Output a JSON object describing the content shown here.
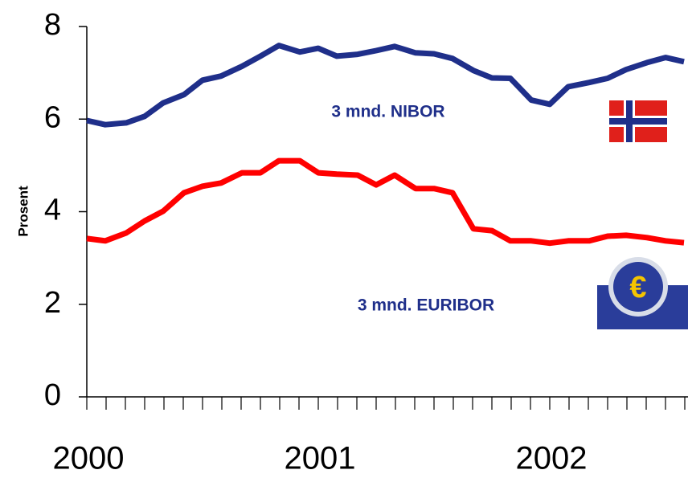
{
  "chart_data": {
    "type": "line",
    "y_label": "Prosent",
    "annotations": [
      "3 mnd. NIBOR",
      "3 mnd. EURIBOR"
    ],
    "x": [
      2000,
      2000.08,
      2000.17,
      2000.25,
      2000.33,
      2000.42,
      2000.5,
      2000.58,
      2000.67,
      2000.75,
      2000.83,
      2000.92,
      2001,
      2001.08,
      2001.17,
      2001.25,
      2001.33,
      2001.42,
      2001.5,
      2001.58,
      2001.67,
      2001.75,
      2001.83,
      2001.92,
      2002,
      2002.08,
      2002.17,
      2002.25,
      2002.33,
      2002.42,
      2002.5,
      2002.58
    ],
    "series": [
      {
        "name": "3 mnd. NIBOR",
        "color": "#1f2f8a",
        "values": [
          5.97,
          5.88,
          5.92,
          6.06,
          6.35,
          6.53,
          6.84,
          6.93,
          7.14,
          7.36,
          7.59,
          7.45,
          7.53,
          7.36,
          7.4,
          7.48,
          7.57,
          7.43,
          7.41,
          7.31,
          7.05,
          6.89,
          6.88,
          6.41,
          6.32,
          6.7,
          6.79,
          6.88,
          7.07,
          7.22,
          7.33,
          7.24
        ]
      },
      {
        "name": "3 mnd. EURIBOR",
        "color": "#ff0000",
        "values": [
          3.42,
          3.37,
          3.54,
          3.8,
          4.01,
          4.41,
          4.55,
          4.62,
          4.84,
          4.84,
          5.1,
          5.1,
          4.84,
          4.81,
          4.79,
          4.58,
          4.79,
          4.5,
          4.5,
          4.41,
          3.63,
          3.59,
          3.37,
          3.37,
          3.32,
          3.37,
          3.37,
          3.47,
          3.49,
          3.44,
          3.37,
          3.33
        ]
      }
    ],
    "xlim": [
      2000,
      2002.6
    ],
    "xticks": [
      2000,
      2001,
      2002
    ],
    "ylim": [
      0,
      8
    ],
    "yticks": [
      0,
      2,
      4,
      6,
      8
    ],
    "grid": false
  }
}
